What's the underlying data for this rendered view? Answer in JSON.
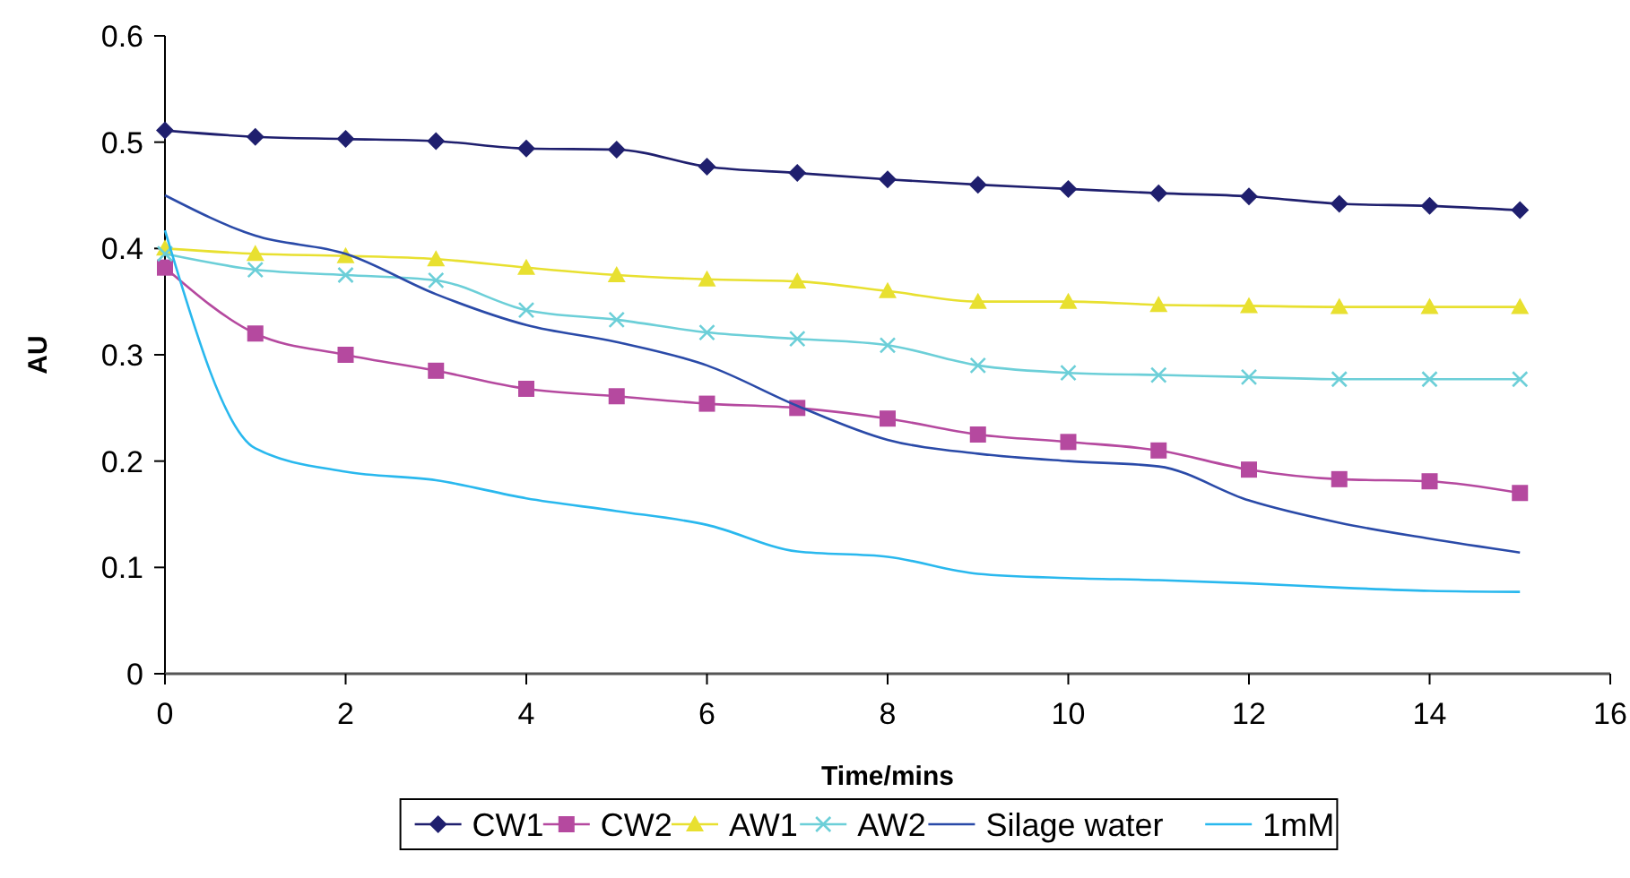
{
  "chart_data": {
    "type": "line",
    "xlabel": "Time/mins",
    "ylabel": "AU",
    "x": [
      0,
      1,
      2,
      3,
      4,
      5,
      6,
      7,
      8,
      9,
      10,
      11,
      12,
      13,
      14,
      15
    ],
    "xlim": [
      0,
      16
    ],
    "xticks": [
      0,
      2,
      4,
      6,
      8,
      10,
      12,
      14,
      16
    ],
    "ylim": [
      0,
      0.6
    ],
    "yticks": [
      0,
      0.1,
      0.2,
      0.3,
      0.4,
      0.5,
      0.6
    ],
    "grid": false,
    "legend": "bottom",
    "series": [
      {
        "name": "CW1",
        "color": "#1f1f6e",
        "marker": "diamond",
        "values": [
          0.511,
          0.505,
          0.503,
          0.501,
          0.494,
          0.493,
          0.477,
          0.471,
          0.465,
          0.46,
          0.456,
          0.452,
          0.449,
          0.442,
          0.44,
          0.436
        ]
      },
      {
        "name": "CW2",
        "color": "#b5499f",
        "marker": "square",
        "values": [
          0.382,
          0.32,
          0.3,
          0.285,
          0.268,
          0.261,
          0.254,
          0.25,
          0.24,
          0.225,
          0.218,
          0.21,
          0.192,
          0.183,
          0.181,
          0.17
        ]
      },
      {
        "name": "AW1",
        "color": "#e8e030",
        "marker": "triangle",
        "values": [
          0.4,
          0.395,
          0.393,
          0.39,
          0.382,
          0.375,
          0.371,
          0.369,
          0.36,
          0.35,
          0.35,
          0.347,
          0.346,
          0.345,
          0.345,
          0.345
        ]
      },
      {
        "name": "AW2",
        "color": "#6ccfd8",
        "marker": "cross",
        "values": [
          0.395,
          0.38,
          0.375,
          0.37,
          0.342,
          0.333,
          0.321,
          0.315,
          0.309,
          0.29,
          0.283,
          0.281,
          0.279,
          0.277,
          0.277,
          0.277
        ]
      },
      {
        "name": "Silage water",
        "color": "#2a4aa8",
        "marker": "none",
        "values": [
          0.45,
          0.412,
          0.395,
          0.357,
          0.328,
          0.312,
          0.29,
          0.252,
          0.22,
          0.207,
          0.2,
          0.195,
          0.163,
          0.142,
          0.127,
          0.114
        ]
      },
      {
        "name": "1mM",
        "color": "#29b8ee",
        "marker": "none",
        "values": [
          0.417,
          0.212,
          0.19,
          0.182,
          0.165,
          0.153,
          0.14,
          0.115,
          0.11,
          0.094,
          0.09,
          0.088,
          0.085,
          0.081,
          0.078,
          0.077
        ]
      }
    ]
  }
}
